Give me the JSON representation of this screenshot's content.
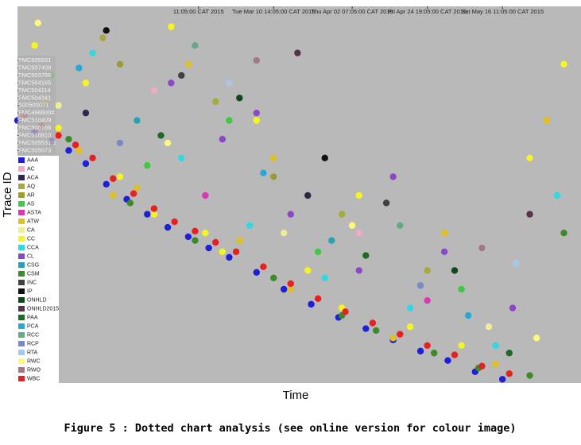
{
  "chart_data": {
    "type": "dotted",
    "x_label": "Time",
    "y_label": "Trace ID",
    "caption": "Figure 5 : Dotted chart analysis (see online version for colour image)",
    "xlim": [
      0,
      165
    ],
    "ylim": [
      0,
      100
    ],
    "y_reversed": true,
    "background": "#b9b9b9",
    "xticks": [
      {
        "value": 53,
        "label": "11:05:00 CAT 2015"
      },
      {
        "value": 75,
        "label": "Tue Mar 10 14:05:00 CAT 2015"
      },
      {
        "value": 98,
        "label": "Thu Apr 02 07:05:00 CAT 2015"
      },
      {
        "value": 120,
        "label": "Fri Apr 24 19:05:00 CAT 2015"
      },
      {
        "value": 142,
        "label": "Sat May 16 11:05:00 CAT 2015"
      }
    ],
    "yticks": [
      {
        "value": 14,
        "label": "FMC505931"
      },
      {
        "value": 16,
        "label": "FMC507409"
      },
      {
        "value": 18,
        "label": "FMC503756"
      },
      {
        "value": 20,
        "label": "FMC504165"
      },
      {
        "value": 22,
        "label": "FMC504114"
      },
      {
        "value": 24,
        "label": "FMC504341"
      },
      {
        "value": 26,
        "label": "S00503071"
      },
      {
        "value": 28,
        "label": "FMC496800#"
      },
      {
        "value": 30,
        "label": "FMC510409"
      },
      {
        "value": 32,
        "label": "FMC505166"
      },
      {
        "value": 34,
        "label": "FMC510810"
      },
      {
        "value": 36,
        "label": "FMC505531-1"
      },
      {
        "value": 38,
        "label": "FMC505673"
      }
    ],
    "series": [
      {
        "name": "AAA",
        "color": "#1f1fd8",
        "x": [
          0,
          5,
          10,
          15,
          20,
          26,
          32,
          38,
          44,
          50,
          56,
          62,
          70,
          78,
          86,
          94,
          102,
          110,
          118,
          126,
          134,
          142
        ],
        "y": [
          30,
          33,
          35.5,
          38,
          41.5,
          47,
          51,
          55,
          58.5,
          61,
          64,
          66.5,
          70.5,
          75,
          79,
          82.5,
          85.5,
          88.5,
          91.5,
          94,
          97,
          99
        ]
      },
      {
        "name": "AC",
        "color": "#f4a8c8",
        "x": [
          40,
          100
        ],
        "y": [
          22,
          60
        ]
      },
      {
        "name": "ACA",
        "color": "#2a2a48",
        "x": [
          20,
          85
        ],
        "y": [
          28,
          50
        ]
      },
      {
        "name": "AQ",
        "color": "#a8a840",
        "x": [
          25,
          58,
          95,
          120
        ],
        "y": [
          8,
          25,
          55,
          70
        ]
      },
      {
        "name": "AR",
        "color": "#9c9c30",
        "x": [
          30,
          75
        ],
        "y": [
          15,
          45
        ]
      },
      {
        "name": "AS",
        "color": "#40c840",
        "x": [
          10,
          38,
          62,
          88,
          130
        ],
        "y": [
          18,
          42,
          30,
          65,
          75
        ]
      },
      {
        "name": "ASTA",
        "color": "#d838b8",
        "x": [
          55,
          120
        ],
        "y": [
          50,
          78
        ]
      },
      {
        "name": "ATW",
        "color": "#e0c020",
        "x": [
          8,
          18,
          28,
          50,
          65,
          80,
          110,
          125,
          140,
          155,
          35,
          75
        ],
        "y": [
          25,
          38,
          50,
          15,
          62,
          75,
          88,
          60,
          95,
          30,
          48,
          40
        ]
      },
      {
        "name": "CA",
        "color": "#eeee98",
        "x": [
          12,
          78,
          138
        ],
        "y": [
          26,
          60,
          85
        ]
      },
      {
        "name": "CC",
        "color": "#f5f520",
        "x": [
          5,
          12,
          20,
          30,
          45,
          55,
          70,
          85,
          100,
          115,
          130,
          150,
          160,
          40,
          60,
          95
        ],
        "y": [
          10,
          32,
          20,
          45,
          5,
          60,
          30,
          70,
          50,
          85,
          90,
          40,
          15,
          55,
          65,
          80
        ]
      },
      {
        "name": "CCA",
        "color": "#30d8e0",
        "x": [
          22,
          48,
          68,
          90,
          115,
          140,
          158
        ],
        "y": [
          12,
          40,
          58,
          72,
          80,
          90,
          50
        ]
      },
      {
        "name": "CL",
        "color": "#8a48c8",
        "x": [
          45,
          60,
          80,
          100,
          125,
          145,
          70,
          110
        ],
        "y": [
          20,
          35,
          55,
          70,
          65,
          80,
          28,
          45
        ]
      },
      {
        "name": "CSG",
        "color": "#2aa0b0",
        "x": [
          35,
          92
        ],
        "y": [
          30,
          62
        ]
      },
      {
        "name": "CSM",
        "color": "#3c8a28",
        "x": [
          15,
          33,
          52,
          75,
          95,
          105,
          122,
          135,
          150,
          160
        ],
        "y": [
          35,
          52,
          62,
          72,
          82,
          86,
          92,
          96,
          98,
          60
        ]
      },
      {
        "name": "INC",
        "color": "#404040",
        "x": [
          48,
          108
        ],
        "y": [
          18,
          52
        ]
      },
      {
        "name": "IP",
        "color": "#101010",
        "x": [
          26,
          90
        ],
        "y": [
          6,
          40
        ]
      },
      {
        "name": "ONHLD",
        "color": "#104818",
        "x": [
          65,
          128
        ],
        "y": [
          24,
          70
        ]
      },
      {
        "name": "ONHLD2015",
        "color": "#583050",
        "x": [
          82,
          150
        ],
        "y": [
          12,
          55
        ]
      },
      {
        "name": "PAA",
        "color": "#1f6a28",
        "x": [
          42,
          102,
          144
        ],
        "y": [
          34,
          66,
          92
        ]
      },
      {
        "name": "PCA",
        "color": "#28a8d8",
        "x": [
          18,
          72,
          132
        ],
        "y": [
          16,
          44,
          82
        ]
      },
      {
        "name": "RCC",
        "color": "#68a888",
        "x": [
          52,
          112
        ],
        "y": [
          10,
          58
        ]
      },
      {
        "name": "RCP",
        "color": "#7888c8",
        "x": [
          30,
          118
        ],
        "y": [
          36,
          74
        ]
      },
      {
        "name": "RTA",
        "color": "#a8c8e8",
        "x": [
          62,
          146
        ],
        "y": [
          20,
          68
        ]
      },
      {
        "name": "RWC",
        "color": "#fff87a",
        "x": [
          6,
          44,
          98,
          152
        ],
        "y": [
          4,
          36,
          58,
          88
        ]
      },
      {
        "name": "RWO",
        "color": "#a07888",
        "x": [
          70,
          136
        ],
        "y": [
          14,
          64
        ]
      },
      {
        "name": "WBC",
        "color": "#e82020",
        "x": [
          2,
          7,
          12,
          17,
          22,
          28,
          34,
          40,
          46,
          52,
          58,
          64,
          72,
          80,
          88,
          96,
          104,
          112,
          120,
          128,
          136,
          144
        ],
        "y": [
          28.5,
          31.5,
          34,
          36.5,
          40,
          45.5,
          49.5,
          53.5,
          57,
          59.5,
          62.5,
          65,
          69,
          73.5,
          77.5,
          81,
          84,
          87,
          90,
          92.5,
          95.5,
          97.5
        ]
      }
    ]
  }
}
